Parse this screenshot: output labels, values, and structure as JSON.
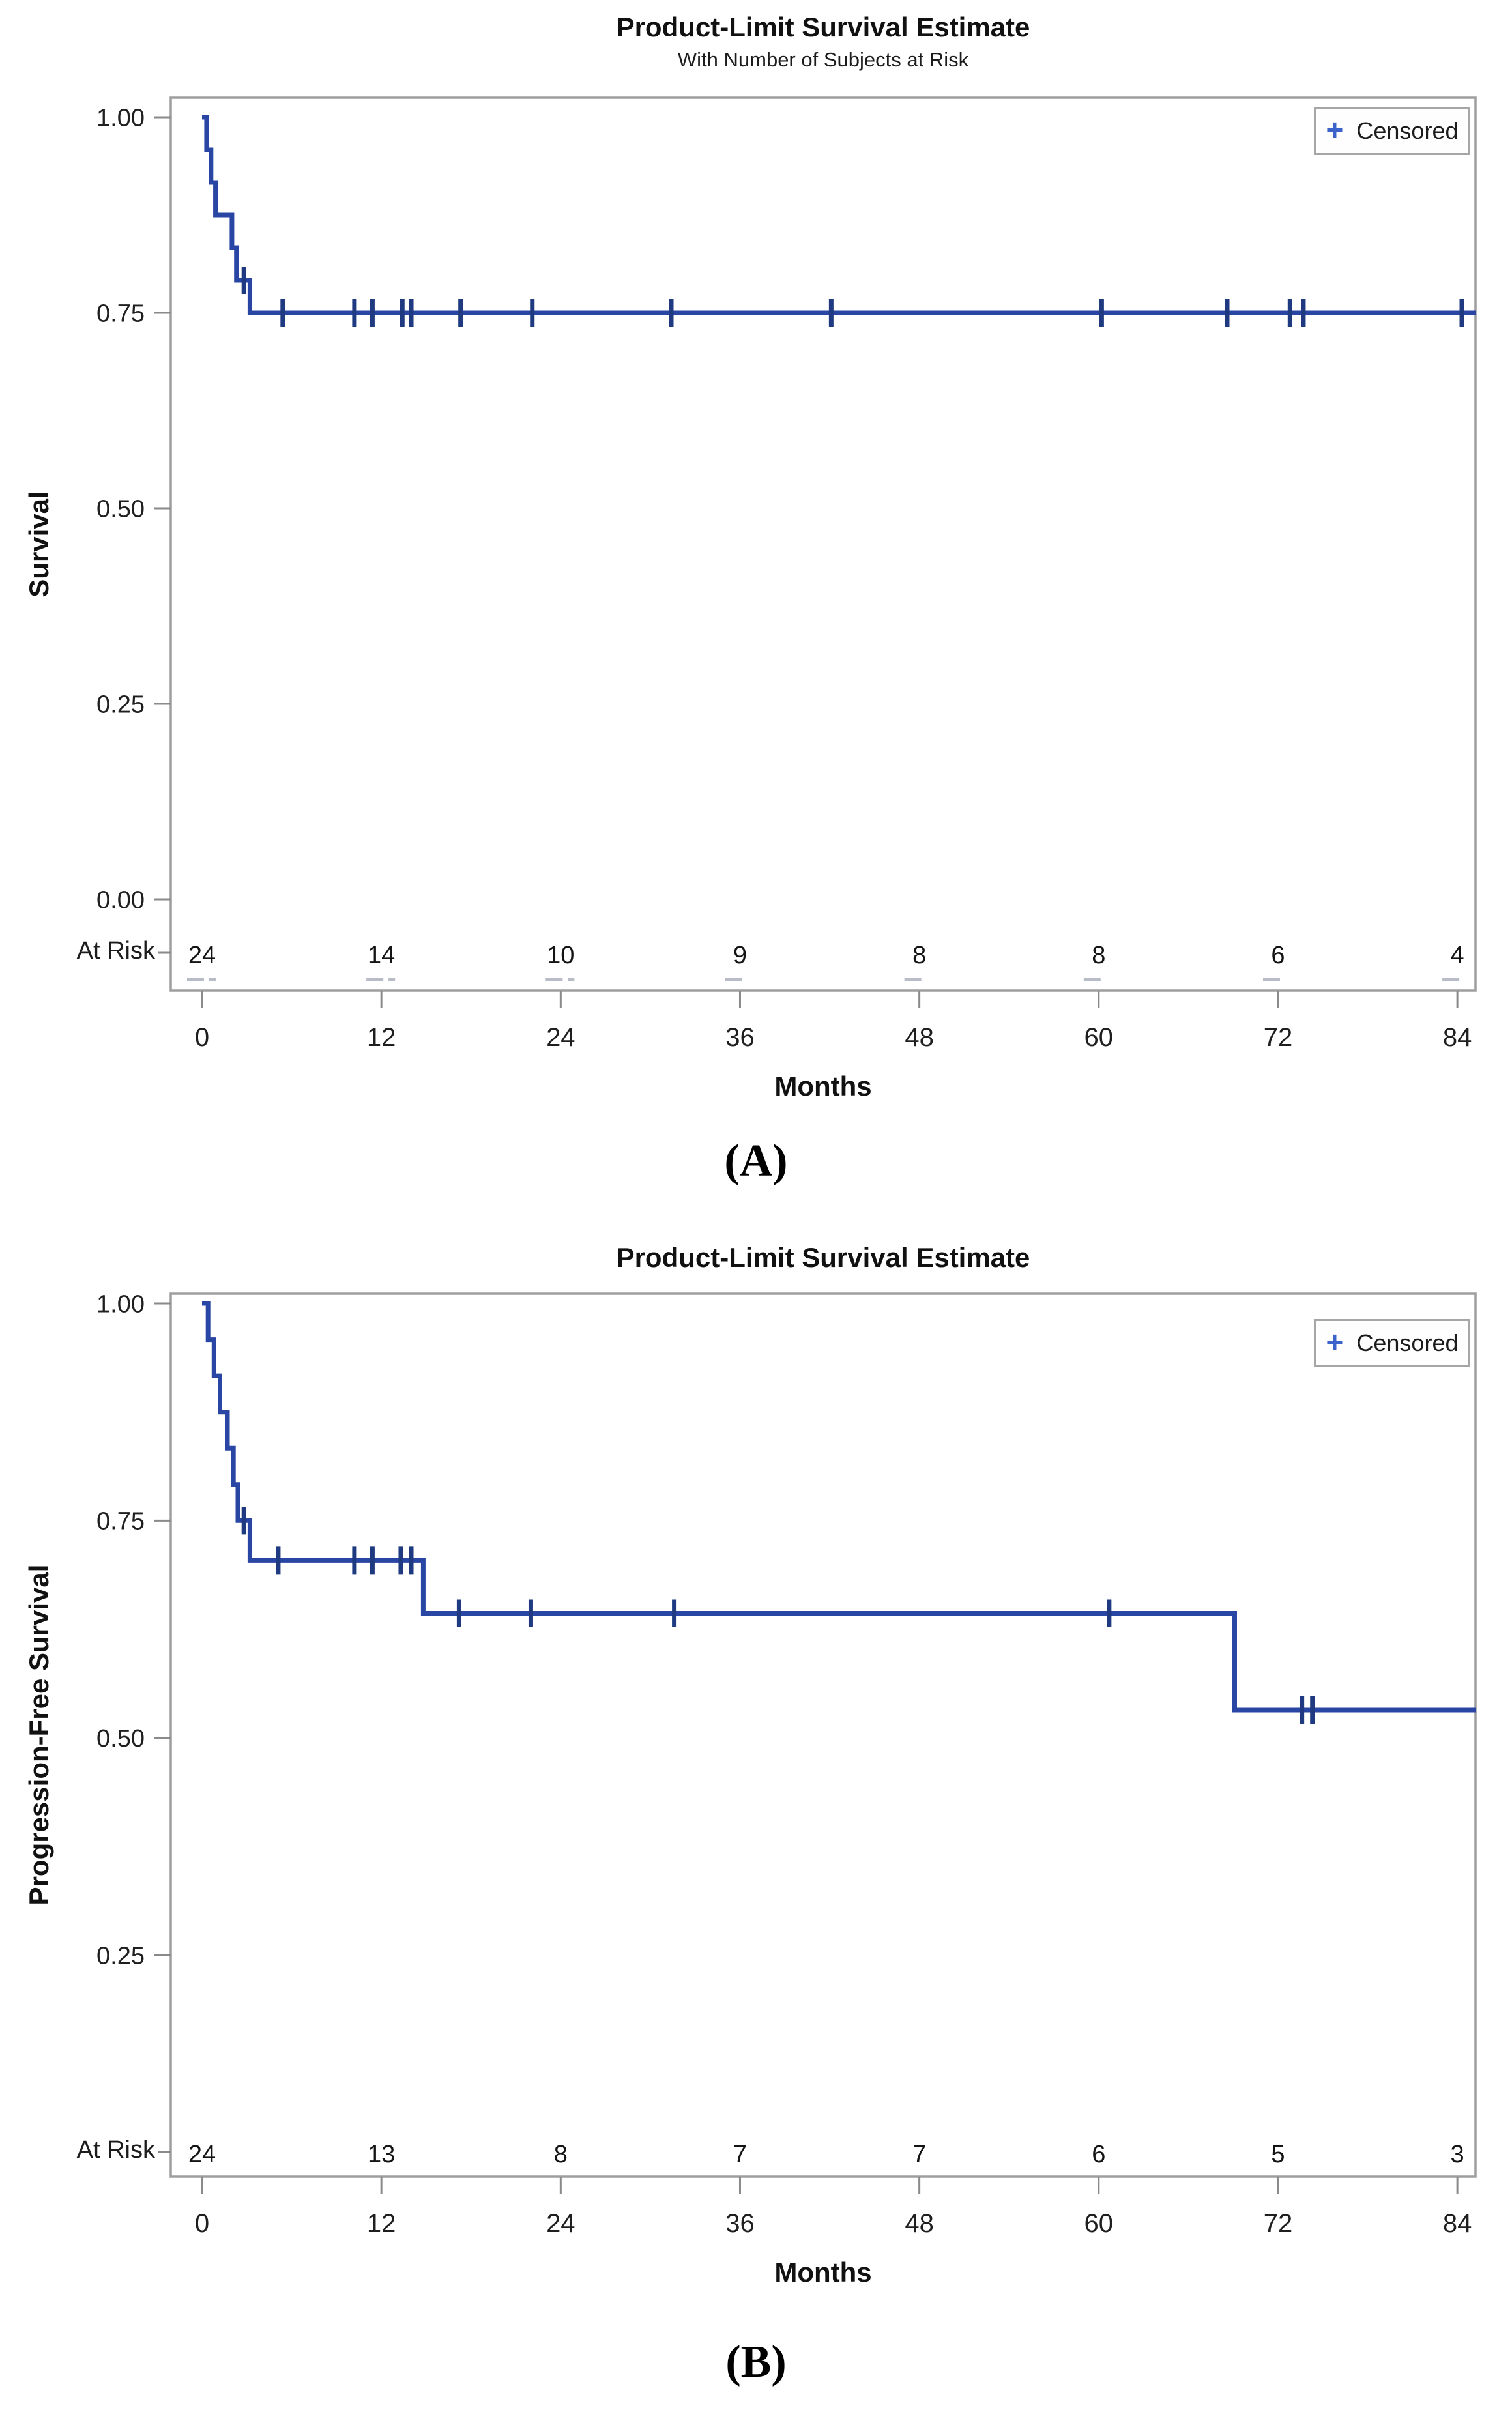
{
  "page": {
    "background": "#ffffff"
  },
  "colors": {
    "curve": "#2946a5",
    "censor": "#1f3a80",
    "legend_plus": "#3c62cc",
    "frame": "#9e9e9e",
    "tick": "#8a8a8a",
    "tick_text": "#1f1f1f",
    "at_risk_dash": "#b7bcc6"
  },
  "legend": {
    "symbol": "+",
    "label": "Censored"
  },
  "chart_data": [
    {
      "id": "A",
      "type": "line",
      "kind": "kaplan-meier-step",
      "title": "Product-Limit Survival Estimate",
      "subtitle": "With Number of Subjects at Risk",
      "ylabel": "Survival",
      "xlabel": "Months",
      "caption": "(A)",
      "xlim": [
        0,
        84
      ],
      "ylim": [
        0.0,
        1.0
      ],
      "grid": false,
      "legend_position": "top-right-inside",
      "yticks": [
        {
          "v": 1.0,
          "label": "1.00"
        },
        {
          "v": 0.75,
          "label": "0.75"
        },
        {
          "v": 0.5,
          "label": "0.50"
        },
        {
          "v": 0.25,
          "label": "0.25"
        },
        {
          "v": 0.0,
          "label": "0.00"
        }
      ],
      "xticks": [
        {
          "v": 0,
          "label": "0"
        },
        {
          "v": 12,
          "label": "12"
        },
        {
          "v": 24,
          "label": "24"
        },
        {
          "v": 36,
          "label": "36"
        },
        {
          "v": 48,
          "label": "48"
        },
        {
          "v": 60,
          "label": "60"
        },
        {
          "v": 72,
          "label": "72"
        },
        {
          "v": 84,
          "label": "84"
        }
      ],
      "at_risk_label": "At Risk",
      "at_risk": [
        24,
        14,
        10,
        9,
        8,
        8,
        6,
        4
      ],
      "steps": [
        [
          0,
          1.0
        ],
        [
          0.3,
          1.0
        ],
        [
          0.3,
          0.9583
        ],
        [
          0.6,
          0.9583
        ],
        [
          0.6,
          0.9167
        ],
        [
          0.9,
          0.9167
        ],
        [
          0.9,
          0.875
        ],
        [
          2.0,
          0.875
        ],
        [
          2.0,
          0.8333
        ],
        [
          2.3,
          0.8333
        ],
        [
          2.3,
          0.7917
        ],
        [
          3.2,
          0.7917
        ],
        [
          3.2,
          0.75
        ],
        [
          85.3,
          0.75
        ]
      ],
      "censors": [
        [
          2.8,
          0.7917
        ],
        [
          5.4,
          0.75
        ],
        [
          10.2,
          0.75
        ],
        [
          11.4,
          0.75
        ],
        [
          13.4,
          0.75
        ],
        [
          14.0,
          0.75
        ],
        [
          17.3,
          0.75
        ],
        [
          22.1,
          0.75
        ],
        [
          31.4,
          0.75
        ],
        [
          42.1,
          0.75
        ],
        [
          60.2,
          0.75
        ],
        [
          68.6,
          0.75
        ],
        [
          72.8,
          0.75
        ],
        [
          73.7,
          0.75
        ],
        [
          84.3,
          0.75
        ]
      ]
    },
    {
      "id": "B",
      "type": "line",
      "kind": "kaplan-meier-step",
      "title": "Product-Limit Survival Estimate",
      "subtitle": "",
      "ylabel": "Progression-Free Survival",
      "xlabel": "Months",
      "caption": "(B)",
      "xlim": [
        0,
        84
      ],
      "ylim": [
        0.0,
        1.0
      ],
      "grid": false,
      "legend_position": "top-right-inside",
      "yticks": [
        {
          "v": 1.0,
          "label": "1.00"
        },
        {
          "v": 0.75,
          "label": "0.75"
        },
        {
          "v": 0.5,
          "label": "0.50"
        },
        {
          "v": 0.25,
          "label": "0.25"
        }
      ],
      "xticks": [
        {
          "v": 0,
          "label": "0"
        },
        {
          "v": 12,
          "label": "12"
        },
        {
          "v": 24,
          "label": "24"
        },
        {
          "v": 36,
          "label": "36"
        },
        {
          "v": 48,
          "label": "48"
        },
        {
          "v": 60,
          "label": "60"
        },
        {
          "v": 72,
          "label": "72"
        },
        {
          "v": 84,
          "label": "84"
        }
      ],
      "at_risk_label": "At Risk",
      "at_risk": [
        24,
        13,
        8,
        7,
        7,
        6,
        5,
        3
      ],
      "steps": [
        [
          0,
          1.0
        ],
        [
          0.4,
          1.0
        ],
        [
          0.4,
          0.9583
        ],
        [
          0.8,
          0.9583
        ],
        [
          0.8,
          0.9167
        ],
        [
          1.2,
          0.9167
        ],
        [
          1.2,
          0.875
        ],
        [
          1.7,
          0.875
        ],
        [
          1.7,
          0.8333
        ],
        [
          2.1,
          0.8333
        ],
        [
          2.1,
          0.7917
        ],
        [
          2.4,
          0.7917
        ],
        [
          2.4,
          0.75
        ],
        [
          3.2,
          0.75
        ],
        [
          3.2,
          0.7042
        ],
        [
          14.8,
          0.7042
        ],
        [
          14.8,
          0.6434
        ],
        [
          69.1,
          0.6434
        ],
        [
          69.1,
          0.532
        ],
        [
          85.3,
          0.532
        ]
      ],
      "censors": [
        [
          2.8,
          0.75
        ],
        [
          5.1,
          0.7042
        ],
        [
          10.2,
          0.7042
        ],
        [
          11.4,
          0.7042
        ],
        [
          13.3,
          0.7042
        ],
        [
          14.0,
          0.7042
        ],
        [
          17.2,
          0.6434
        ],
        [
          22.0,
          0.6434
        ],
        [
          31.6,
          0.6434
        ],
        [
          60.7,
          0.6434
        ],
        [
          73.6,
          0.532
        ],
        [
          74.3,
          0.532
        ]
      ]
    }
  ]
}
